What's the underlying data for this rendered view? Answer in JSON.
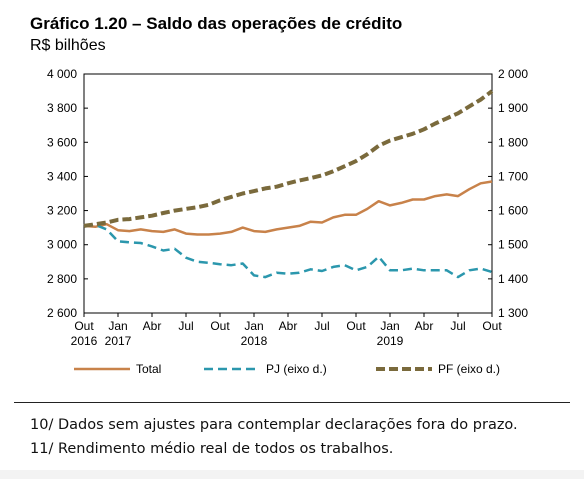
{
  "header": {
    "title": "Gráfico 1.20 – Saldo das operações de crédito",
    "unit": "R$ bilhões"
  },
  "chart_data": {
    "type": "line",
    "title": "Gráfico 1.20 – Saldo das operações de crédito",
    "ylabel_left": "R$ bilhões",
    "ylim_left": [
      2600,
      4000
    ],
    "yticks_left": [
      "2 600",
      "2 800",
      "3 000",
      "3 200",
      "3 400",
      "3 600",
      "3 800",
      "4 000"
    ],
    "ylim_right": [
      1300,
      2000
    ],
    "yticks_right": [
      "1 300",
      "1 400",
      "1 500",
      "1 600",
      "1 700",
      "1 800",
      "1 900",
      "2 000"
    ],
    "x": [
      "2016-10",
      "2016-11",
      "2016-12",
      "2017-01",
      "2017-02",
      "2017-03",
      "2017-04",
      "2017-05",
      "2017-06",
      "2017-07",
      "2017-08",
      "2017-09",
      "2017-10",
      "2017-11",
      "2017-12",
      "2018-01",
      "2018-02",
      "2018-03",
      "2018-04",
      "2018-05",
      "2018-06",
      "2018-07",
      "2018-08",
      "2018-09",
      "2018-10",
      "2018-11",
      "2018-12",
      "2019-01",
      "2019-02",
      "2019-03",
      "2019-04",
      "2019-05",
      "2019-06",
      "2019-07",
      "2019-08",
      "2019-09",
      "2019-10"
    ],
    "xtick_labels": [
      {
        "month": "Out",
        "year": "2016"
      },
      {
        "month": "Jan",
        "year": "2017"
      },
      {
        "month": "Abr",
        "year": ""
      },
      {
        "month": "Jul",
        "year": ""
      },
      {
        "month": "Out",
        "year": ""
      },
      {
        "month": "Jan",
        "year": "2018"
      },
      {
        "month": "Abr",
        "year": ""
      },
      {
        "month": "Jul",
        "year": ""
      },
      {
        "month": "Out",
        "year": ""
      },
      {
        "month": "Jan",
        "year": "2019"
      },
      {
        "month": "Abr",
        "year": ""
      },
      {
        "month": "Jul",
        "year": ""
      },
      {
        "month": "Out",
        "year": ""
      }
    ],
    "series": [
      {
        "name": "Total",
        "axis": "left",
        "color": "#c8824a",
        "style": "solid",
        "values": [
          3110,
          3105,
          3120,
          3085,
          3080,
          3090,
          3080,
          3075,
          3090,
          3065,
          3060,
          3060,
          3065,
          3075,
          3100,
          3080,
          3075,
          3090,
          3100,
          3110,
          3135,
          3130,
          3160,
          3175,
          3175,
          3210,
          3255,
          3230,
          3245,
          3265,
          3265,
          3285,
          3295,
          3285,
          3325,
          3360,
          3370
        ]
      },
      {
        "name": "PJ (eixo d.)",
        "axis": "right",
        "color": "#2b97ad",
        "style": "dashed",
        "values": [
          1555,
          1558,
          1545,
          1510,
          1507,
          1505,
          1495,
          1483,
          1488,
          1462,
          1450,
          1447,
          1443,
          1440,
          1445,
          1410,
          1405,
          1418,
          1415,
          1418,
          1428,
          1423,
          1435,
          1440,
          1425,
          1435,
          1465,
          1425,
          1425,
          1430,
          1425,
          1425,
          1425,
          1405,
          1425,
          1430,
          1420
        ]
      },
      {
        "name": "PF (eixo d.)",
        "axis": "right",
        "color": "#7a6a3c",
        "style": "dashed-thick",
        "values": [
          1555,
          1560,
          1565,
          1573,
          1575,
          1580,
          1585,
          1593,
          1600,
          1605,
          1610,
          1617,
          1630,
          1640,
          1650,
          1657,
          1665,
          1670,
          1680,
          1688,
          1695,
          1703,
          1715,
          1730,
          1745,
          1765,
          1790,
          1805,
          1815,
          1825,
          1838,
          1855,
          1870,
          1885,
          1905,
          1925,
          1950
        ]
      }
    ]
  },
  "legend": [
    {
      "label": "Total"
    },
    {
      "label": "PJ (eixo d.)"
    },
    {
      "label": "PF (eixo d.)"
    }
  ],
  "notes": [
    "10/ Dados sem ajustes para contemplar declarações fora do prazo.",
    "11/ Rendimento médio real de todos os trabalhos."
  ]
}
